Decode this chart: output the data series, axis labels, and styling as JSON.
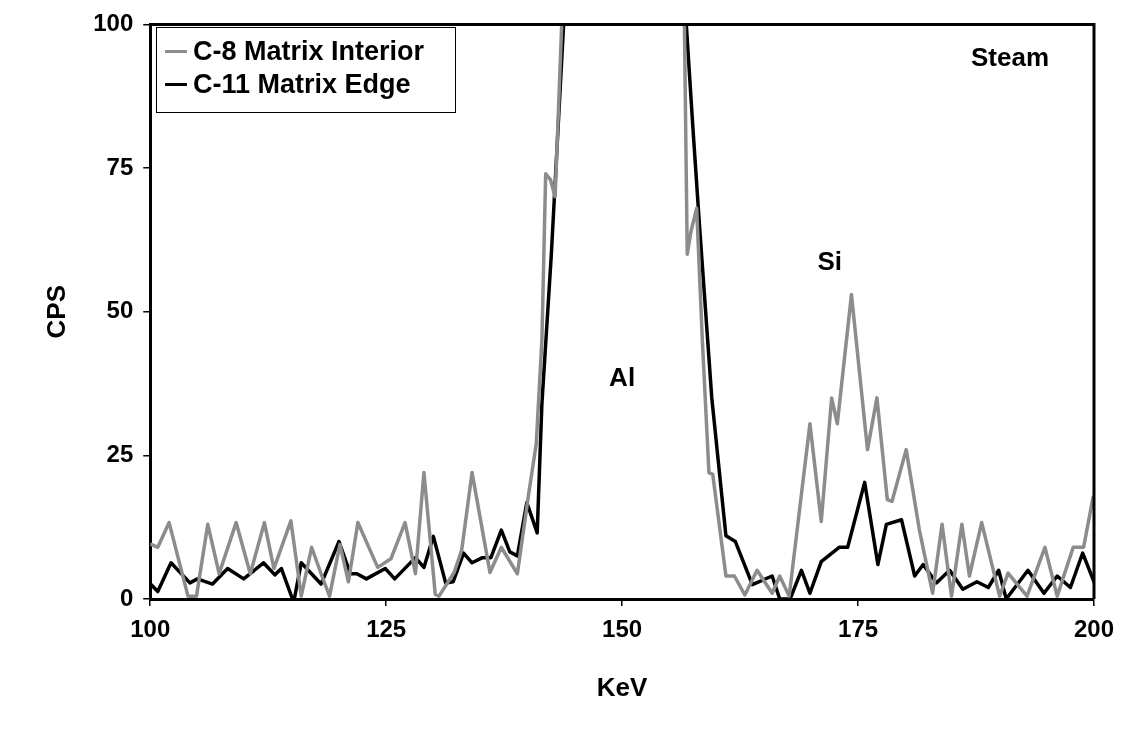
{
  "chart_data": {
    "type": "line",
    "xlabel": "KeV",
    "ylabel": "CPS",
    "xlim": [
      100,
      200
    ],
    "xticks": [
      100,
      125,
      150,
      175,
      200
    ],
    "ylim": [
      0,
      100
    ],
    "yticks": [
      0,
      25,
      50,
      75,
      100
    ],
    "grid": false,
    "legend": "top left",
    "marker": "none",
    "line_style": "solid",
    "annotations": [
      "Al",
      "Si",
      "Steam"
    ],
    "series": [
      {
        "name": "C-8 Matrix Interior",
        "color": "#8c8c8c",
        "x": [
          100.1,
          100.8,
          102,
          104,
          104.9,
          106.1,
          107.3,
          109.1,
          110.6,
          112.1,
          113.1,
          114.9,
          116,
          117.1,
          118.1,
          119,
          120.1,
          121,
          122,
          124.1,
          125.5,
          127,
          128.1,
          129,
          130.2,
          130.6,
          132.2,
          133,
          134.1,
          136,
          137.2,
          138.9,
          140.1,
          140.9,
          141.5,
          141.9,
          142.4,
          142.9,
          143.6,
          143.7,
          156.6,
          156.9,
          157.3,
          157.9,
          158.5,
          159.2,
          159.6,
          161,
          161.9,
          163,
          164.3,
          165.9,
          166.7,
          167.7,
          169.9,
          171.1,
          172.2,
          172.8,
          174.3,
          176,
          177,
          178.1,
          178.6,
          180.1,
          181.5,
          182.9,
          183.9,
          184.9,
          186,
          186.8,
          188.1,
          190,
          190.9,
          192.9,
          194.8,
          196.1,
          197.8,
          198.9,
          199.9
        ],
        "values": [
          9.5,
          9,
          13.3,
          0.5,
          0.5,
          13,
          4.4,
          13.3,
          4.4,
          13.3,
          5.3,
          13.6,
          0.5,
          9,
          4.4,
          0.5,
          9.5,
          3,
          13.3,
          5.5,
          7,
          13.3,
          4.4,
          22,
          0.8,
          0.5,
          4.6,
          8.5,
          22,
          4.6,
          9,
          4.4,
          18.3,
          27,
          45,
          74,
          73,
          70,
          100,
          null,
          100,
          60,
          64,
          68,
          45,
          22,
          21.7,
          4,
          4,
          0.7,
          5,
          1,
          4,
          0.5,
          30.5,
          13.5,
          35,
          30.5,
          53,
          26,
          35,
          17.3,
          17,
          26,
          12,
          1,
          13,
          0.5,
          13,
          4,
          13.3,
          0.5,
          4.5,
          0.5,
          9,
          0.5,
          9,
          9,
          17.7
        ]
      },
      {
        "name": "C-11 Matrix Edge",
        "color": "#000000",
        "x": [
          100.1,
          100.8,
          102.2,
          104.2,
          105,
          106.6,
          108.2,
          109.9,
          112,
          113.2,
          113.9,
          115,
          115.3,
          116,
          118.1,
          120,
          121.2,
          121.9,
          122.9,
          124.9,
          125.9,
          128.1,
          129,
          130,
          131.3,
          132.1,
          133.2,
          134.1,
          135.2,
          136.1,
          137.2,
          138.1,
          138.9,
          139.9,
          141,
          141.5,
          142.5,
          143.8,
          143.9,
          156.8,
          157.5,
          158.2,
          159.5,
          161,
          162,
          163.8,
          165.9,
          166.7,
          167.8,
          169,
          169.9,
          171.1,
          173,
          173.9,
          175.7,
          177.1,
          178,
          179.6,
          181,
          181.9,
          183.3,
          184.7,
          186.1,
          187.6,
          188.8,
          189.9,
          190.7,
          193,
          194.7,
          196.1,
          197.5,
          198.8,
          200
        ],
        "values": [
          2.5,
          1.3,
          6.3,
          2.8,
          3.5,
          2.6,
          5.3,
          3.5,
          6.3,
          4.2,
          5.3,
          0.3,
          0.3,
          6.3,
          2.6,
          10,
          4.4,
          4.4,
          3.5,
          5.3,
          3.5,
          7.2,
          5.5,
          10.9,
          2.8,
          3,
          8,
          6.3,
          7.2,
          7.2,
          12,
          8.2,
          7.5,
          16.8,
          11.5,
          34,
          60,
          100,
          null,
          100,
          82,
          65,
          35,
          11,
          10,
          2.5,
          4,
          0,
          0,
          5,
          1,
          6.5,
          9,
          9,
          20.3,
          6,
          13,
          13.8,
          4,
          6,
          2.8,
          5,
          1.7,
          3,
          2,
          5,
          0,
          5,
          1,
          4,
          2,
          8,
          3
        ]
      }
    ]
  }
}
